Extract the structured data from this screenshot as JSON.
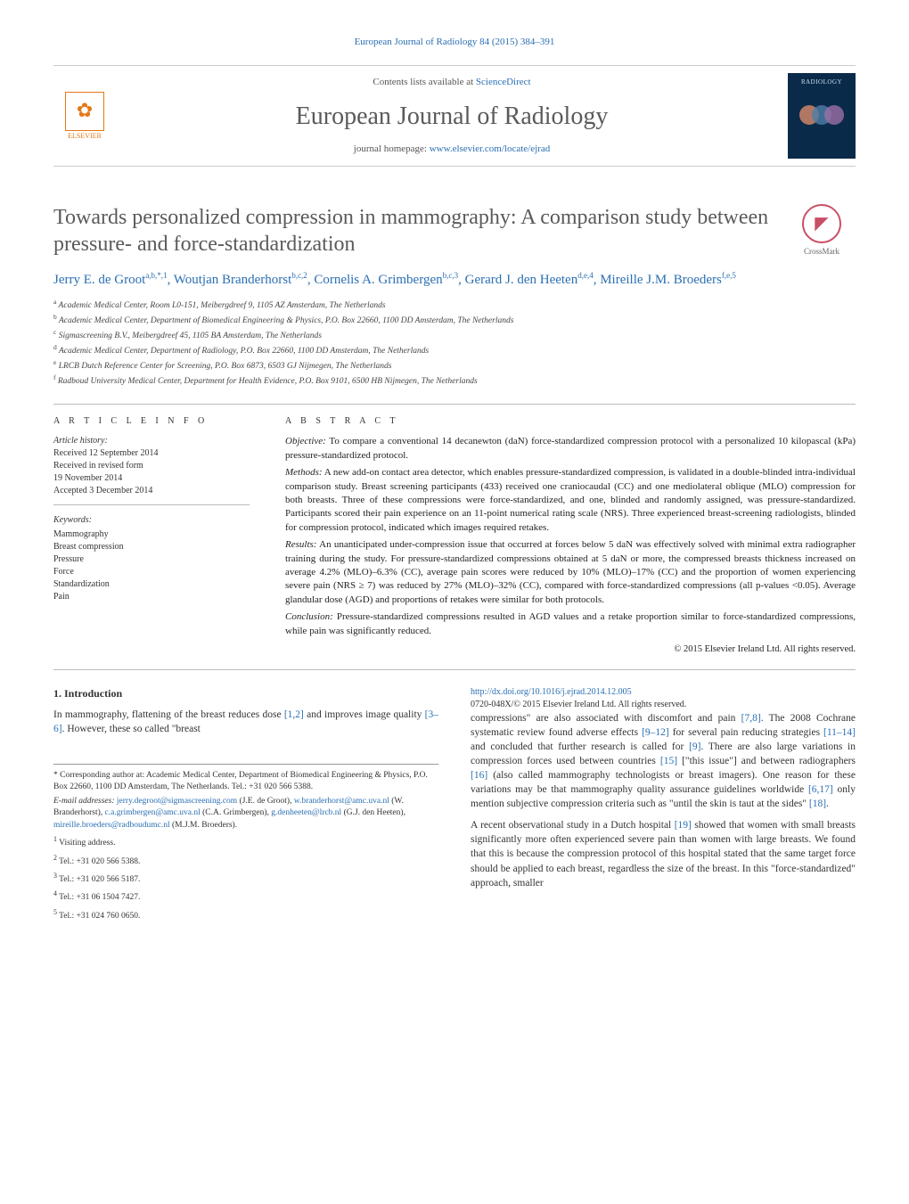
{
  "running_header": "European Journal of Radiology 84 (2015) 384–391",
  "top": {
    "elsevier_label": "ELSEVIER",
    "contents_prefix": "Contents lists available at ",
    "contents_link": "ScienceDirect",
    "journal_name": "European Journal of Radiology",
    "homepage_prefix": "journal homepage: ",
    "homepage_link": "www.elsevier.com/locate/ejrad",
    "cover_title": "RADIOLOGY"
  },
  "title": "Towards personalized compression in mammography: A comparison study between pressure- and force-standardization",
  "crossmark_label": "CrossMark",
  "authors_html": "Jerry E. de Groot<sup>a,b,*,1</sup>, Woutjan Branderhorst<sup>b,c,2</sup>, Cornelis A. Grimbergen<sup>b,c,3</sup>, Gerard J. den Heeten<sup>d,e,4</sup>, Mireille J.M. Broeders<sup>f,e,5</sup>",
  "affiliations": [
    {
      "sup": "a",
      "text": "Academic Medical Center, Room L0-151, Meibergdreef 9, 1105 AZ Amsterdam, The Netherlands"
    },
    {
      "sup": "b",
      "text": "Academic Medical Center, Department of Biomedical Engineering & Physics, P.O. Box 22660, 1100 DD Amsterdam, The Netherlands"
    },
    {
      "sup": "c",
      "text": "Sigmascreening B.V., Meibergdreef 45, 1105 BA Amsterdam, The Netherlands"
    },
    {
      "sup": "d",
      "text": "Academic Medical Center, Department of Radiology, P.O. Box 22660, 1100 DD Amsterdam, The Netherlands"
    },
    {
      "sup": "e",
      "text": "LRCB Dutch Reference Center for Screening, P.O. Box 6873, 6503 GJ Nijmegen, The Netherlands"
    },
    {
      "sup": "f",
      "text": "Radboud University Medical Center, Department for Health Evidence, P.O. Box 9101, 6500 HB Nijmegen, The Netherlands"
    }
  ],
  "info": {
    "label": "a r t i c l e   i n f o",
    "hist_head": "Article history:",
    "received": "Received 12 September 2014",
    "revised1": "Received in revised form",
    "revised2": "19 November 2014",
    "accepted": "Accepted 3 December 2014",
    "kw_head": "Keywords:",
    "keywords": [
      "Mammography",
      "Breast compression",
      "Pressure",
      "Force",
      "Standardization",
      "Pain"
    ]
  },
  "abstract": {
    "label": "a b s t r a c t",
    "objective_lbl": "Objective:",
    "objective": "To compare a conventional 14 decanewton (daN) force-standardized compression protocol with a personalized 10 kilopascal (kPa) pressure-standardized protocol.",
    "methods_lbl": "Methods:",
    "methods": "A new add-on contact area detector, which enables pressure-standardized compression, is validated in a double-blinded intra-individual comparison study. Breast screening participants (433) received one craniocaudal (CC) and one mediolateral oblique (MLO) compression for both breasts. Three of these compressions were force-standardized, and one, blinded and randomly assigned, was pressure-standardized. Participants scored their pain experience on an 11-point numerical rating scale (NRS). Three experienced breast-screening radiologists, blinded for compression protocol, indicated which images required retakes.",
    "results_lbl": "Results:",
    "results": "An unanticipated under-compression issue that occurred at forces below 5 daN was effectively solved with minimal extra radiographer training during the study. For pressure-standardized compressions obtained at 5 daN or more, the compressed breasts thickness increased on average 4.2% (MLO)–6.3% (CC), average pain scores were reduced by 10% (MLO)–17% (CC) and the proportion of women experiencing severe pain (NRS ≥ 7) was reduced by 27% (MLO)–32% (CC), compared with force-standardized compressions (all p-values <0.05). Average glandular dose (AGD) and proportions of retakes were similar for both protocols.",
    "conclusion_lbl": "Conclusion:",
    "conclusion": "Pressure-standardized compressions resulted in AGD values and a retake proportion similar to force-standardized compressions, while pain was significantly reduced.",
    "copyright": "© 2015 Elsevier Ireland Ltd. All rights reserved."
  },
  "intro": {
    "heading": "1.  Introduction",
    "para1_a": "In mammography, flattening of the breast reduces dose ",
    "para1_ref1": "[1,2]",
    "para1_b": " and improves image quality ",
    "para1_ref2": "[3–6]",
    "para1_c": ". However, these so called \"breast ",
    "para2_a": "compressions\" are also associated with discomfort and pain ",
    "para2_ref1": "[7,8]",
    "para2_b": ". The 2008 Cochrane systematic review found adverse effects ",
    "para2_ref2": "[9–12]",
    "para2_c": " for several pain reducing strategies ",
    "para2_ref3": "[11–14]",
    "para2_d": " and concluded that further research is called for ",
    "para2_ref4": "[9]",
    "para2_e": ". There are also large variations in compression forces used between countries ",
    "para2_ref5": "[15]",
    "para2_f": " [\"this issue\"] and between radiographers ",
    "para2_ref6": "[16]",
    "para2_g": " (also called mammography technologists or breast imagers). One reason for these variations may be that mammography quality assurance guidelines worldwide ",
    "para2_ref7": "[6,17]",
    "para2_h": " only mention subjective compression criteria such as \"until the skin is taut at the sides\" ",
    "para2_ref8": "[18]",
    "para2_i": ".",
    "para3_a": "A recent observational study in a Dutch hospital ",
    "para3_ref1": "[19]",
    "para3_b": " showed that women with small breasts significantly more often experienced severe pain than women with large breasts. We found that this is because the compression protocol of this hospital stated that the same target force should be applied to each breast, regardless the size of the breast. In this \"force-standardized\" approach, smaller"
  },
  "footnotes": {
    "corr": "* Corresponding author at: Academic Medical Center, Department of Biomedical Engineering & Physics, P.O. Box 22660, 1100 DD Amsterdam, The Netherlands. Tel.: +31 020 566 5388.",
    "emails_lbl": "E-mail addresses:",
    "emails": [
      {
        "addr": "jerry.degroot@sigmascreening.com",
        "name": "(J.E. de Groot),"
      },
      {
        "addr": "w.branderhorst@amc.uva.nl",
        "name": "(W. Branderhorst),"
      },
      {
        "addr": "c.a.grimbergen@amc.uva.nl",
        "name": "(C.A. Grimbergen),"
      },
      {
        "addr": "g.denheeten@lrcb.nl",
        "name": "(G.J. den Heeten),"
      },
      {
        "addr": "mireille.broeders@radboudumc.nl",
        "name": "(M.J.M. Broeders)."
      }
    ],
    "notes": [
      {
        "sup": "1",
        "text": "Visiting address."
      },
      {
        "sup": "2",
        "text": "Tel.: +31 020 566 5388."
      },
      {
        "sup": "3",
        "text": "Tel.: +31 020 566 5187."
      },
      {
        "sup": "4",
        "text": "Tel.: +31 06 1504 7427."
      },
      {
        "sup": "5",
        "text": "Tel.: +31 024 760 0650."
      }
    ]
  },
  "doi": {
    "link": "http://dx.doi.org/10.1016/j.ejrad.2014.12.005",
    "issn": "0720-048X/© 2015 Elsevier Ireland Ltd. All rights reserved."
  },
  "colors": {
    "link": "#2b6fb3",
    "elsevier": "#e67817",
    "cover_bg": "#0a2a4a",
    "orb1": "#d98b6a",
    "orb2": "#4f7ea8",
    "orb3": "#9c6fa6",
    "crossmark": "#c94f66",
    "text_gray": "#5a5a5a"
  }
}
